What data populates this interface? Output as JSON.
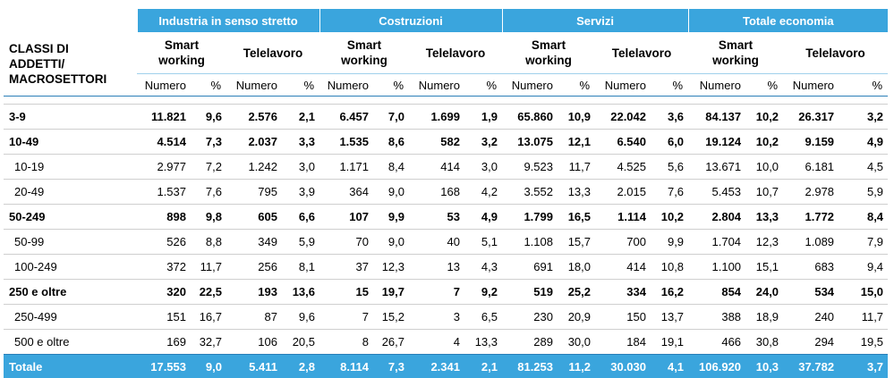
{
  "header": {
    "corner": "CLASSI DI ADDETTI/ MACROSETTORI",
    "sectors": [
      "Industria in senso stretto",
      "Costruzioni",
      "Servizi",
      "Totale economia"
    ],
    "metrics": [
      "Smart working",
      "Telelavoro"
    ],
    "units": [
      "Numero",
      "%"
    ]
  },
  "rows": [
    {
      "label": "3-9",
      "style": "bold",
      "values": [
        "11.821",
        "9,6",
        "2.576",
        "2,1",
        "6.457",
        "7,0",
        "1.699",
        "1,9",
        "65.860",
        "10,9",
        "22.042",
        "3,6",
        "84.137",
        "10,2",
        "26.317",
        "3,2"
      ]
    },
    {
      "label": "10-49",
      "style": "bold",
      "values": [
        "4.514",
        "7,3",
        "2.037",
        "3,3",
        "1.535",
        "8,6",
        "582",
        "3,2",
        "13.075",
        "12,1",
        "6.540",
        "6,0",
        "19.124",
        "10,2",
        "9.159",
        "4,9"
      ]
    },
    {
      "label": "10-19",
      "style": "sub",
      "values": [
        "2.977",
        "7,2",
        "1.242",
        "3,0",
        "1.171",
        "8,4",
        "414",
        "3,0",
        "9.523",
        "11,7",
        "4.525",
        "5,6",
        "13.671",
        "10,0",
        "6.181",
        "4,5"
      ]
    },
    {
      "label": "20-49",
      "style": "sub",
      "values": [
        "1.537",
        "7,6",
        "795",
        "3,9",
        "364",
        "9,0",
        "168",
        "4,2",
        "3.552",
        "13,3",
        "2.015",
        "7,6",
        "5.453",
        "10,7",
        "2.978",
        "5,9"
      ]
    },
    {
      "label": "50-249",
      "style": "bold",
      "values": [
        "898",
        "9,8",
        "605",
        "6,6",
        "107",
        "9,9",
        "53",
        "4,9",
        "1.799",
        "16,5",
        "1.114",
        "10,2",
        "2.804",
        "13,3",
        "1.772",
        "8,4"
      ]
    },
    {
      "label": "50-99",
      "style": "sub",
      "values": [
        "526",
        "8,8",
        "349",
        "5,9",
        "70",
        "9,0",
        "40",
        "5,1",
        "1.108",
        "15,7",
        "700",
        "9,9",
        "1.704",
        "12,3",
        "1.089",
        "7,9"
      ]
    },
    {
      "label": "100-249",
      "style": "sub",
      "values": [
        "372",
        "11,7",
        "256",
        "8,1",
        "37",
        "12,3",
        "13",
        "4,3",
        "691",
        "18,0",
        "414",
        "10,8",
        "1.100",
        "15,1",
        "683",
        "9,4"
      ]
    },
    {
      "label": "250 e oltre",
      "style": "bold",
      "values": [
        "320",
        "22,5",
        "193",
        "13,6",
        "15",
        "19,7",
        "7",
        "9,2",
        "519",
        "25,2",
        "334",
        "16,2",
        "854",
        "24,0",
        "534",
        "15,0"
      ]
    },
    {
      "label": "250-499",
      "style": "sub",
      "values": [
        "151",
        "16,7",
        "87",
        "9,6",
        "7",
        "15,2",
        "3",
        "6,5",
        "230",
        "20,9",
        "150",
        "13,7",
        "388",
        "18,9",
        "240",
        "11,7"
      ]
    },
    {
      "label": "500 e oltre",
      "style": "sub",
      "values": [
        "169",
        "32,7",
        "106",
        "20,5",
        "8",
        "26,7",
        "4",
        "13,3",
        "289",
        "30,0",
        "184",
        "19,1",
        "466",
        "30,8",
        "294",
        "19,5"
      ]
    },
    {
      "label": "Totale",
      "style": "total",
      "values": [
        "17.553",
        "9,0",
        "5.411",
        "2,8",
        "8.114",
        "7,3",
        "2.341",
        "2,1",
        "81.253",
        "11,2",
        "30.030",
        "4,1",
        "106.920",
        "10,3",
        "37.782",
        "3,7"
      ]
    }
  ],
  "colors": {
    "header_bg": "#3aa5dd",
    "header_text": "#ffffff"
  }
}
